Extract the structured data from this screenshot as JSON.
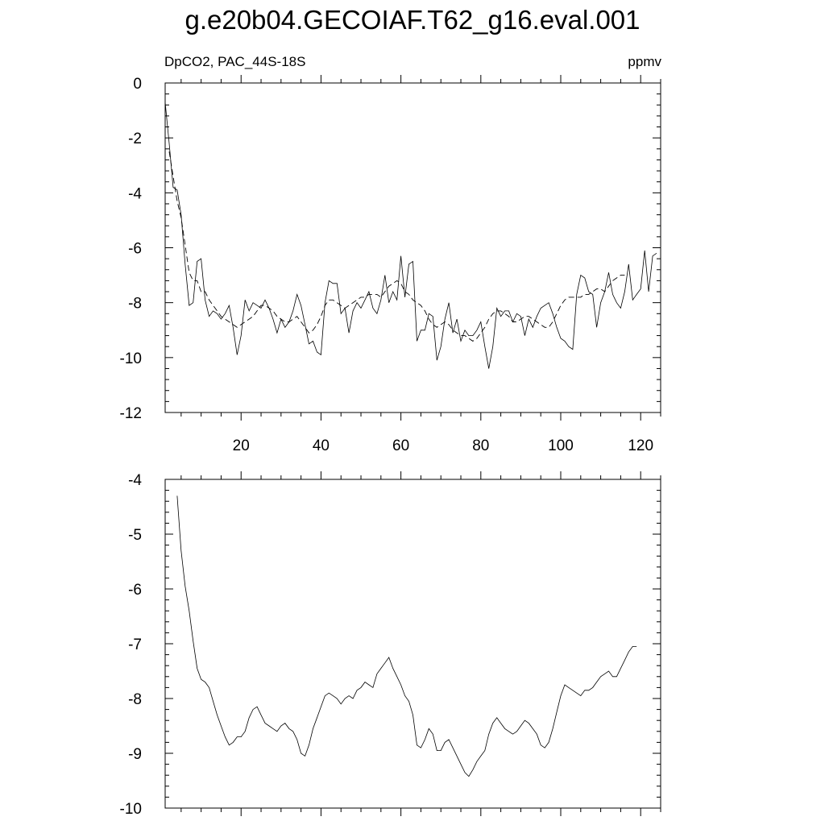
{
  "title": "g.e20b04.GECOIAF.T62_g16.eval.001",
  "chart_data": [
    {
      "type": "line",
      "left_label": "DpCO2, PAC_44S-18S",
      "right_label": "ppmv",
      "xlim": [
        1,
        125
      ],
      "ylim": [
        -12,
        0
      ],
      "x_ticks": [
        20,
        40,
        60,
        80,
        100,
        120
      ],
      "y_ticks": [
        0,
        -2,
        -4,
        -6,
        -8,
        -10,
        -12
      ],
      "series": [
        {
          "style": "solid",
          "x_start": 1,
          "values": [
            -0.7,
            -2.2,
            -3.8,
            -3.9,
            -4.8,
            -6.6,
            -8.1,
            -8.0,
            -6.5,
            -6.4,
            -7.9,
            -8.5,
            -8.3,
            -8.4,
            -8.6,
            -8.4,
            -8.1,
            -8.9,
            -9.9,
            -9.2,
            -7.9,
            -8.3,
            -8.0,
            -8.1,
            -8.2,
            -7.9,
            -8.2,
            -8.6,
            -9.1,
            -8.6,
            -8.9,
            -8.7,
            -8.3,
            -7.7,
            -8.1,
            -8.8,
            -9.5,
            -9.4,
            -9.8,
            -9.9,
            -8.0,
            -7.2,
            -7.3,
            -7.3,
            -8.4,
            -8.2,
            -9.1,
            -8.3,
            -8.0,
            -8.2,
            -7.9,
            -7.6,
            -8.2,
            -8.4,
            -7.9,
            -7.0,
            -8.0,
            -7.6,
            -7.9,
            -6.3,
            -7.8,
            -6.6,
            -6.5,
            -9.4,
            -9.0,
            -9.0,
            -8.4,
            -8.5,
            -10.1,
            -9.6,
            -8.6,
            -8.0,
            -9.1,
            -8.6,
            -9.4,
            -9.0,
            -9.2,
            -9.2,
            -9.0,
            -8.7,
            -9.6,
            -10.4,
            -9.6,
            -8.2,
            -8.5,
            -8.3,
            -8.3,
            -8.7,
            -8.4,
            -8.5,
            -9.2,
            -8.6,
            -8.9,
            -8.5,
            -8.2,
            -8.1,
            -8.0,
            -8.4,
            -8.9,
            -9.3,
            -9.4,
            -9.6,
            -9.7,
            -7.7,
            -7.0,
            -7.1,
            -7.6,
            -7.7,
            -8.9,
            -8.0,
            -7.6,
            -6.9,
            -7.7,
            -8.0,
            -8.2,
            -7.6,
            -6.6,
            -7.9,
            -7.7,
            -7.5,
            -6.1,
            -7.6,
            -6.3,
            -6.2
          ],
          "avg_note": ""
        },
        {
          "style": "dashed",
          "x_start": 2,
          "values": [
            -2.5,
            -3.4,
            -4.3,
            -4.9,
            -5.9,
            -6.9,
            -7.2,
            -7.2,
            -7.6,
            -7.6,
            -7.9,
            -8.1,
            -8.3,
            -8.5,
            -8.6,
            -8.7,
            -8.8,
            -8.9,
            -8.8,
            -8.7,
            -8.6,
            -8.5,
            -8.3,
            -8.1,
            -8.1,
            -8.2,
            -8.3,
            -8.5,
            -8.6,
            -8.7,
            -8.7,
            -8.6,
            -8.5,
            -8.7,
            -8.9,
            -9.1,
            -9.0,
            -8.8,
            -8.5,
            -8.1,
            -7.9,
            -7.9,
            -8.0,
            -8.1,
            -8.2,
            -8.1,
            -8.0,
            -7.9,
            -7.8,
            -7.8,
            -7.7,
            -7.7,
            -7.7,
            -7.8,
            -7.6,
            -7.4,
            -7.3,
            -7.2,
            -7.3,
            -7.6,
            -7.7,
            -7.9,
            -8.0,
            -8.1,
            -8.3,
            -8.6,
            -8.8,
            -8.9,
            -8.8,
            -8.7,
            -8.8,
            -9.0,
            -9.1,
            -9.2,
            -9.2,
            -9.3,
            -9.4,
            -9.3,
            -9.1,
            -8.9,
            -8.6,
            -8.4,
            -8.3,
            -8.3,
            -8.4,
            -8.5,
            -8.7,
            -8.7,
            -8.6,
            -8.5,
            -8.5,
            -8.6,
            -8.7,
            -8.8,
            -8.9,
            -8.9,
            -8.7,
            -8.4,
            -8.1,
            -7.9,
            -7.8,
            -7.8,
            -7.8,
            -7.8,
            -7.7,
            -7.7,
            -7.6,
            -7.5,
            -7.5,
            -7.6,
            -7.4,
            -7.2,
            -7.1,
            -7.0,
            -7.0
          ]
        }
      ]
    },
    {
      "type": "line",
      "xlim": [
        1,
        125
      ],
      "ylim": [
        -10,
        -4
      ],
      "y_ticks": [
        -4,
        -5,
        -6,
        -7,
        -8,
        -9,
        -10
      ],
      "series": [
        {
          "style": "solid",
          "x_start": 4,
          "values": [
            -4.3,
            -5.3,
            -5.95,
            -6.4,
            -6.95,
            -7.45,
            -7.65,
            -7.7,
            -7.8,
            -8.05,
            -8.3,
            -8.5,
            -8.7,
            -8.85,
            -8.8,
            -8.7,
            -8.7,
            -8.6,
            -8.35,
            -8.2,
            -8.15,
            -8.3,
            -8.45,
            -8.5,
            -8.55,
            -8.6,
            -8.5,
            -8.45,
            -8.55,
            -8.6,
            -8.75,
            -9.0,
            -9.05,
            -8.85,
            -8.55,
            -8.35,
            -8.15,
            -7.95,
            -7.9,
            -7.95,
            -8.0,
            -8.1,
            -8.0,
            -7.95,
            -8.0,
            -7.85,
            -7.8,
            -7.7,
            -7.75,
            -7.8,
            -7.55,
            -7.45,
            -7.35,
            -7.25,
            -7.45,
            -7.6,
            -7.75,
            -7.95,
            -8.05,
            -8.3,
            -8.85,
            -8.9,
            -8.75,
            -8.55,
            -8.65,
            -8.95,
            -8.95,
            -8.8,
            -8.75,
            -8.9,
            -9.05,
            -9.2,
            -9.35,
            -9.42,
            -9.3,
            -9.15,
            -9.05,
            -8.95,
            -8.65,
            -8.45,
            -8.35,
            -8.45,
            -8.55,
            -8.6,
            -8.65,
            -8.6,
            -8.5,
            -8.4,
            -8.45,
            -8.55,
            -8.65,
            -8.85,
            -8.9,
            -8.8,
            -8.55,
            -8.25,
            -7.95,
            -7.75,
            -7.8,
            -7.85,
            -7.9,
            -7.95,
            -7.85,
            -7.85,
            -7.8,
            -7.7,
            -7.6,
            -7.55,
            -7.5,
            -7.6,
            -7.6,
            -7.45,
            -7.3,
            -7.15,
            -7.05,
            -7.05
          ]
        }
      ]
    }
  ]
}
